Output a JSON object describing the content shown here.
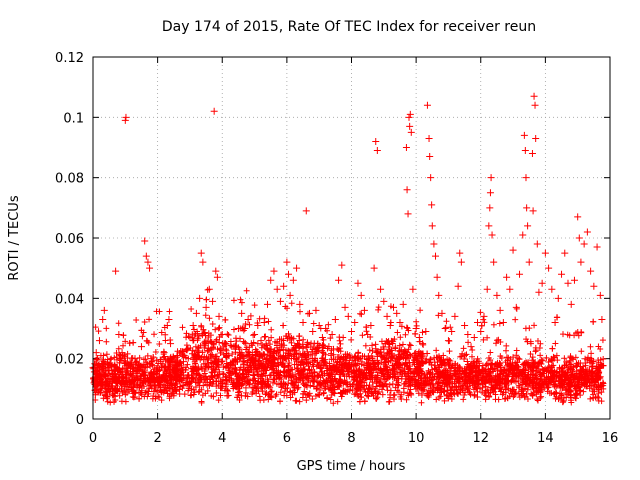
{
  "chart_data": {
    "type": "scatter",
    "title": "Day 174 of 2015, Rate Of TEC Index for receiver reun",
    "xlabel": "GPS time / hours",
    "ylabel": "ROTI / TECUs",
    "xlim": [
      0,
      16
    ],
    "ylim": [
      0,
      0.12
    ],
    "x_ticks": [
      0,
      2,
      4,
      6,
      8,
      10,
      12,
      14,
      16
    ],
    "x_tick_labels": [
      "0",
      "2",
      "4",
      "6",
      "8",
      "10",
      "12",
      "14",
      "16"
    ],
    "y_ticks": [
      0,
      0.02,
      0.04,
      0.06,
      0.08,
      0.1,
      0.12
    ],
    "y_tick_labels": [
      "0",
      "0.02",
      "0.04",
      "0.06",
      "0.08",
      "0.1",
      "0.12"
    ],
    "grid": true,
    "marker": "+",
    "color": "#ff0000",
    "series": [
      {
        "name": "ROTI",
        "points": [
          [
            0.0,
            0.017
          ],
          [
            0.05,
            0.012
          ],
          [
            0.1,
            0.022
          ],
          [
            0.15,
            0.009
          ],
          [
            0.2,
            0.026
          ],
          [
            0.25,
            0.014
          ],
          [
            0.3,
            0.033
          ],
          [
            0.35,
            0.036
          ],
          [
            0.4,
            0.018
          ],
          [
            0.5,
            0.011
          ],
          [
            0.6,
            0.008
          ],
          [
            0.7,
            0.049
          ],
          [
            0.8,
            0.028
          ],
          [
            0.9,
            0.022
          ],
          [
            1.0,
            0.099
          ],
          [
            1.02,
            0.1
          ],
          [
            1.1,
            0.018
          ],
          [
            1.2,
            0.013
          ],
          [
            1.3,
            0.02
          ],
          [
            1.4,
            0.016
          ],
          [
            1.5,
            0.024
          ],
          [
            1.6,
            0.059
          ],
          [
            1.65,
            0.054
          ],
          [
            1.7,
            0.052
          ],
          [
            1.75,
            0.05
          ],
          [
            1.8,
            0.02
          ],
          [
            1.9,
            0.013
          ],
          [
            2.0,
            0.017
          ],
          [
            2.1,
            0.019
          ],
          [
            2.2,
            0.022
          ],
          [
            2.3,
            0.031
          ],
          [
            2.35,
            0.033
          ],
          [
            2.4,
            0.025
          ],
          [
            2.5,
            0.018
          ],
          [
            2.6,
            0.021
          ],
          [
            2.7,
            0.015
          ],
          [
            2.8,
            0.019
          ],
          [
            2.9,
            0.023
          ],
          [
            3.0,
            0.027
          ],
          [
            3.1,
            0.031
          ],
          [
            3.2,
            0.035
          ],
          [
            3.3,
            0.04
          ],
          [
            3.35,
            0.055
          ],
          [
            3.4,
            0.052
          ],
          [
            3.5,
            0.037
          ],
          [
            3.6,
            0.043
          ],
          [
            3.7,
            0.039
          ],
          [
            3.75,
            0.102
          ],
          [
            3.8,
            0.049
          ],
          [
            3.85,
            0.047
          ],
          [
            3.9,
            0.034
          ],
          [
            4.0,
            0.028
          ],
          [
            4.1,
            0.025
          ],
          [
            4.2,
            0.021
          ],
          [
            4.3,
            0.018
          ],
          [
            4.4,
            0.024
          ],
          [
            4.5,
            0.03
          ],
          [
            4.6,
            0.035
          ],
          [
            4.7,
            0.03
          ],
          [
            4.8,
            0.033
          ],
          [
            4.9,
            0.025
          ],
          [
            5.0,
            0.028
          ],
          [
            5.1,
            0.031
          ],
          [
            5.2,
            0.026
          ],
          [
            5.3,
            0.032
          ],
          [
            5.4,
            0.038
          ],
          [
            5.5,
            0.046
          ],
          [
            5.6,
            0.049
          ],
          [
            5.7,
            0.043
          ],
          [
            5.8,
            0.039
          ],
          [
            5.9,
            0.044
          ],
          [
            6.0,
            0.052
          ],
          [
            6.05,
            0.048
          ],
          [
            6.1,
            0.041
          ],
          [
            6.2,
            0.046
          ],
          [
            6.3,
            0.05
          ],
          [
            6.4,
            0.038
          ],
          [
            6.5,
            0.032
          ],
          [
            6.6,
            0.069
          ],
          [
            6.7,
            0.035
          ],
          [
            6.8,
            0.029
          ],
          [
            6.9,
            0.036
          ],
          [
            7.0,
            0.031
          ],
          [
            7.1,
            0.027
          ],
          [
            7.2,
            0.03
          ],
          [
            7.3,
            0.024
          ],
          [
            7.4,
            0.028
          ],
          [
            7.5,
            0.033
          ],
          [
            7.6,
            0.046
          ],
          [
            7.7,
            0.051
          ],
          [
            7.8,
            0.037
          ],
          [
            7.9,
            0.034
          ],
          [
            8.0,
            0.029
          ],
          [
            8.1,
            0.032
          ],
          [
            8.2,
            0.045
          ],
          [
            8.3,
            0.041
          ],
          [
            8.4,
            0.036
          ],
          [
            8.5,
            0.028
          ],
          [
            8.6,
            0.031
          ],
          [
            8.7,
            0.05
          ],
          [
            8.75,
            0.092
          ],
          [
            8.8,
            0.089
          ],
          [
            8.9,
            0.043
          ],
          [
            9.0,
            0.039
          ],
          [
            9.1,
            0.034
          ],
          [
            9.2,
            0.031
          ],
          [
            9.3,
            0.037
          ],
          [
            9.4,
            0.035
          ],
          [
            9.5,
            0.032
          ],
          [
            9.6,
            0.038
          ],
          [
            9.7,
            0.09
          ],
          [
            9.72,
            0.076
          ],
          [
            9.75,
            0.068
          ],
          [
            9.78,
            0.1
          ],
          [
            9.8,
            0.097
          ],
          [
            9.82,
            0.101
          ],
          [
            9.85,
            0.095
          ],
          [
            9.9,
            0.043
          ],
          [
            10.0,
            0.03
          ],
          [
            10.1,
            0.027
          ],
          [
            10.2,
            0.025
          ],
          [
            10.3,
            0.029
          ],
          [
            10.35,
            0.104
          ],
          [
            10.4,
            0.093
          ],
          [
            10.42,
            0.087
          ],
          [
            10.45,
            0.08
          ],
          [
            10.48,
            0.071
          ],
          [
            10.5,
            0.064
          ],
          [
            10.55,
            0.058
          ],
          [
            10.6,
            0.054
          ],
          [
            10.65,
            0.047
          ],
          [
            10.7,
            0.041
          ],
          [
            10.8,
            0.035
          ],
          [
            10.9,
            0.03
          ],
          [
            11.0,
            0.026
          ],
          [
            11.1,
            0.029
          ],
          [
            11.2,
            0.034
          ],
          [
            11.3,
            0.044
          ],
          [
            11.35,
            0.055
          ],
          [
            11.4,
            0.052
          ],
          [
            11.5,
            0.031
          ],
          [
            11.6,
            0.028
          ],
          [
            11.7,
            0.024
          ],
          [
            11.8,
            0.027
          ],
          [
            11.9,
            0.032
          ],
          [
            12.0,
            0.029
          ],
          [
            12.1,
            0.034
          ],
          [
            12.2,
            0.043
          ],
          [
            12.25,
            0.064
          ],
          [
            12.28,
            0.07
          ],
          [
            12.3,
            0.075
          ],
          [
            12.32,
            0.08
          ],
          [
            12.35,
            0.061
          ],
          [
            12.4,
            0.052
          ],
          [
            12.5,
            0.041
          ],
          [
            12.6,
            0.036
          ],
          [
            12.7,
            0.032
          ],
          [
            12.8,
            0.047
          ],
          [
            12.9,
            0.043
          ],
          [
            13.0,
            0.056
          ],
          [
            13.1,
            0.037
          ],
          [
            13.2,
            0.048
          ],
          [
            13.3,
            0.061
          ],
          [
            13.35,
            0.094
          ],
          [
            13.38,
            0.089
          ],
          [
            13.4,
            0.08
          ],
          [
            13.42,
            0.07
          ],
          [
            13.45,
            0.064
          ],
          [
            13.5,
            0.052
          ],
          [
            13.6,
            0.088
          ],
          [
            13.62,
            0.069
          ],
          [
            13.65,
            0.107
          ],
          [
            13.68,
            0.104
          ],
          [
            13.7,
            0.093
          ],
          [
            13.75,
            0.058
          ],
          [
            13.8,
            0.042
          ],
          [
            13.9,
            0.045
          ],
          [
            14.0,
            0.055
          ],
          [
            14.1,
            0.05
          ],
          [
            14.2,
            0.043
          ],
          [
            14.3,
            0.032
          ],
          [
            14.4,
            0.04
          ],
          [
            14.5,
            0.048
          ],
          [
            14.6,
            0.055
          ],
          [
            14.7,
            0.045
          ],
          [
            14.8,
            0.038
          ],
          [
            14.9,
            0.046
          ],
          [
            15.0,
            0.067
          ],
          [
            15.05,
            0.06
          ],
          [
            15.1,
            0.052
          ],
          [
            15.2,
            0.058
          ],
          [
            15.3,
            0.062
          ],
          [
            15.4,
            0.049
          ],
          [
            15.5,
            0.044
          ],
          [
            15.6,
            0.057
          ],
          [
            15.7,
            0.041
          ],
          [
            15.75,
            0.033
          ]
        ]
      }
    ]
  }
}
